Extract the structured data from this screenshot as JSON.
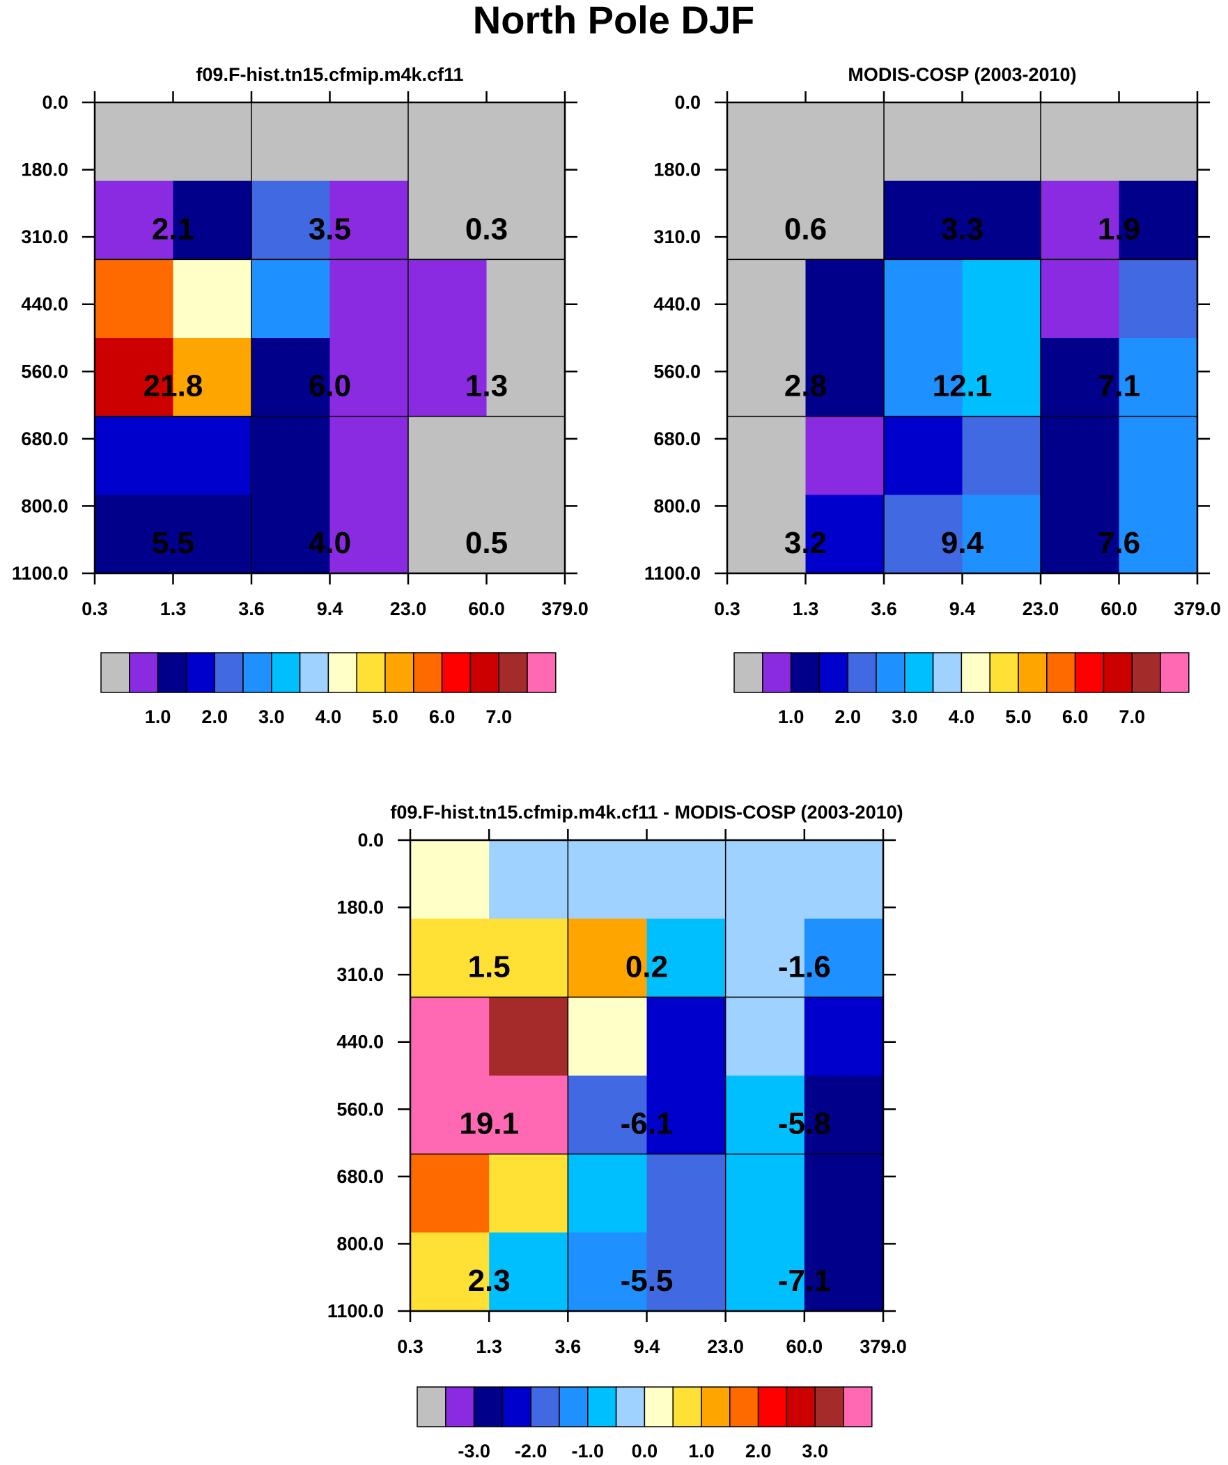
{
  "title": "North Pole DJF",
  "colors": [
    "#c0c0c0",
    "#8a2be2",
    "#00008b",
    "#0000cd",
    "#4169e1",
    "#1e90ff",
    "#00bfff",
    "#a0d2ff",
    "#ffffc8",
    "#ffe135",
    "#ffa500",
    "#ff6a00",
    "#ff0000",
    "#cd0000",
    "#a52a2a",
    "#ff69b4"
  ],
  "chart_data": [
    {
      "type": "heatmap",
      "title": "f09.F-hist.tn15.cfmip.m4k.cf11",
      "x_ticks": [
        "0.3",
        "1.3",
        "3.6",
        "9.4",
        "23.0",
        "60.0",
        "379.0"
      ],
      "y_ticks": [
        "0.0",
        "180.0",
        "310.0",
        "440.0",
        "560.0",
        "680.0",
        "800.0",
        "1100.0"
      ],
      "bins": [
        [
          0,
          0,
          0,
          0,
          0,
          0
        ],
        [
          1,
          2,
          4,
          1,
          0,
          0
        ],
        [
          11,
          8,
          5,
          1,
          1,
          0
        ],
        [
          13,
          10,
          2,
          1,
          1,
          0
        ],
        [
          3,
          3,
          2,
          1,
          0,
          0
        ],
        [
          2,
          2,
          2,
          1,
          0,
          0
        ]
      ],
      "cell_labels": [
        [
          "2.1",
          "3.5",
          "0.3"
        ],
        [
          "21.8",
          "6.0",
          "1.3"
        ],
        [
          "5.5",
          "4.0",
          "0.5"
        ]
      ],
      "legend_labels": [
        "1.0",
        "2.0",
        "3.0",
        "4.0",
        "5.0",
        "6.0",
        "7.0"
      ]
    },
    {
      "type": "heatmap",
      "title": "MODIS-COSP (2003-2010)",
      "x_ticks": [
        "0.3",
        "1.3",
        "3.6",
        "9.4",
        "23.0",
        "60.0",
        "379.0"
      ],
      "y_ticks": [
        "0.0",
        "180.0",
        "310.0",
        "440.0",
        "560.0",
        "680.0",
        "800.0",
        "1100.0"
      ],
      "bins": [
        [
          0,
          0,
          0,
          0,
          0,
          0
        ],
        [
          0,
          0,
          2,
          2,
          1,
          2
        ],
        [
          0,
          2,
          5,
          6,
          1,
          4
        ],
        [
          0,
          2,
          5,
          6,
          2,
          5
        ],
        [
          0,
          1,
          3,
          4,
          2,
          5
        ],
        [
          0,
          3,
          4,
          5,
          2,
          5
        ]
      ],
      "cell_labels": [
        [
          "0.6",
          "3.3",
          "1.9"
        ],
        [
          "2.8",
          "12.1",
          "7.1"
        ],
        [
          "3.2",
          "9.4",
          "7.6"
        ]
      ],
      "legend_labels": [
        "1.0",
        "2.0",
        "3.0",
        "4.0",
        "5.0",
        "6.0",
        "7.0"
      ]
    },
    {
      "type": "heatmap",
      "title": "f09.F-hist.tn15.cfmip.m4k.cf11 - MODIS-COSP (2003-2010)",
      "x_ticks": [
        "0.3",
        "1.3",
        "3.6",
        "9.4",
        "23.0",
        "60.0",
        "379.0"
      ],
      "y_ticks": [
        "0.0",
        "180.0",
        "310.0",
        "440.0",
        "560.0",
        "680.0",
        "800.0",
        "1100.0"
      ],
      "bins": [
        [
          8,
          7,
          7,
          7,
          7,
          7
        ],
        [
          9,
          9,
          10,
          6,
          7,
          5
        ],
        [
          15,
          14,
          8,
          3,
          7,
          3
        ],
        [
          15,
          15,
          4,
          3,
          6,
          2
        ],
        [
          11,
          9,
          6,
          4,
          6,
          2
        ],
        [
          9,
          6,
          5,
          4,
          6,
          2
        ]
      ],
      "cell_labels": [
        [
          "1.5",
          "0.2",
          "-1.6"
        ],
        [
          "19.1",
          "-6.1",
          "-5.8"
        ],
        [
          "2.3",
          "-5.5",
          "-7.1"
        ]
      ],
      "legend_labels": [
        "-3.0",
        "-2.0",
        "-1.0",
        "0.0",
        "1.0",
        "2.0",
        "3.0"
      ]
    }
  ]
}
